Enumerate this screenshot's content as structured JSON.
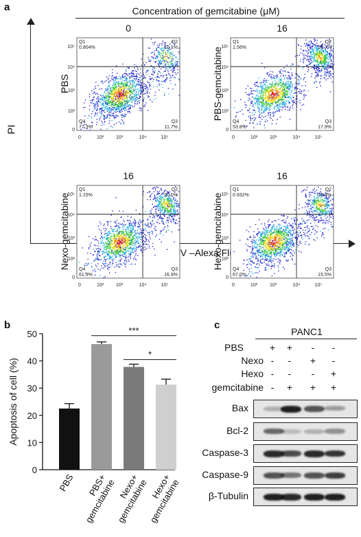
{
  "panel_a": {
    "letter": "a",
    "top_title": "Concentration of gemcitabine (μM)",
    "y_axis": "PI",
    "x_axis": "Annexin V –Alexa Fluor 647",
    "plots": [
      {
        "conc": "0",
        "label": "PBS",
        "q1": "0.804%",
        "q2": "10.1%",
        "q3": "11.7%",
        "q4": "77.3%"
      },
      {
        "conc": "16",
        "label": "PBS-gemcitabine",
        "q1": "1.56%",
        "q2": "26.7%",
        "q3": "17.9%",
        "q4": "53.8%"
      },
      {
        "conc": "16",
        "label": "Nexo-gemcitabine",
        "q1": "1.15%",
        "q2": "20.0%",
        "q3": "16.9%",
        "q4": "61.9%"
      },
      {
        "conc": "16",
        "label": "Hexo-gemcitabine",
        "q1": "0.932%",
        "q2": "16.6%",
        "q3": "15.5%",
        "q4": "67.0%"
      }
    ],
    "quadrant_names": {
      "q1": "Q1",
      "q2": "Q2",
      "q3": "Q3",
      "q4": "Q4"
    },
    "ticks": {
      "y": [
        "10⁵",
        "10⁴",
        "10³",
        "10²",
        "0"
      ],
      "x": [
        "0",
        "10²",
        "10³",
        "10⁴",
        "10⁵"
      ]
    }
  },
  "panel_b": {
    "letter": "b",
    "sig1": "***",
    "sig2": "*"
  },
  "chart_data": {
    "type": "bar",
    "categories": [
      "PBS",
      "PBS+ gemcitabine",
      "Nexo+ gemcitabine",
      "Hexo+ gemcitabine"
    ],
    "category_lines": [
      [
        "PBS"
      ],
      [
        "PBS+",
        "gemcitabine"
      ],
      [
        "Nexo+",
        "gemcitabine"
      ],
      [
        "Hexo+",
        "gemcitabine"
      ]
    ],
    "values": [
      22.5,
      46.2,
      37.8,
      31.3
    ],
    "errors": [
      1.8,
      0.8,
      1.0,
      2.0
    ],
    "colors": [
      "#111111",
      "#9a9a9a",
      "#7a7a7a",
      "#cfcfcf"
    ],
    "ylabel": "Apoptosis of cell (%)",
    "ylim": [
      0,
      50
    ],
    "yticks": [
      0,
      10,
      20,
      30,
      40,
      50
    ]
  },
  "panel_c": {
    "letter": "c",
    "cell_line": "PANC1",
    "conditions": [
      {
        "name": "PBS",
        "marks": [
          "+",
          "+",
          "-",
          "-"
        ]
      },
      {
        "name": "Nexo",
        "marks": [
          "-",
          "-",
          "+",
          "-"
        ]
      },
      {
        "name": "Hexo",
        "marks": [
          "-",
          "-",
          "-",
          "+"
        ]
      },
      {
        "name": "gemcitabine",
        "marks": [
          "-",
          "+",
          "+",
          "+"
        ]
      }
    ],
    "blots": [
      "Bax",
      "Bcl-2",
      "Caspase-3",
      "Caspase-9",
      "β-Tubulin"
    ],
    "intensity": [
      [
        0.25,
        0.95,
        0.7,
        0.35
      ],
      [
        0.6,
        0.2,
        0.25,
        0.4
      ],
      [
        0.9,
        0.75,
        0.9,
        0.85
      ],
      [
        0.7,
        0.55,
        0.7,
        0.8
      ],
      [
        0.95,
        0.9,
        0.95,
        0.95
      ]
    ]
  }
}
